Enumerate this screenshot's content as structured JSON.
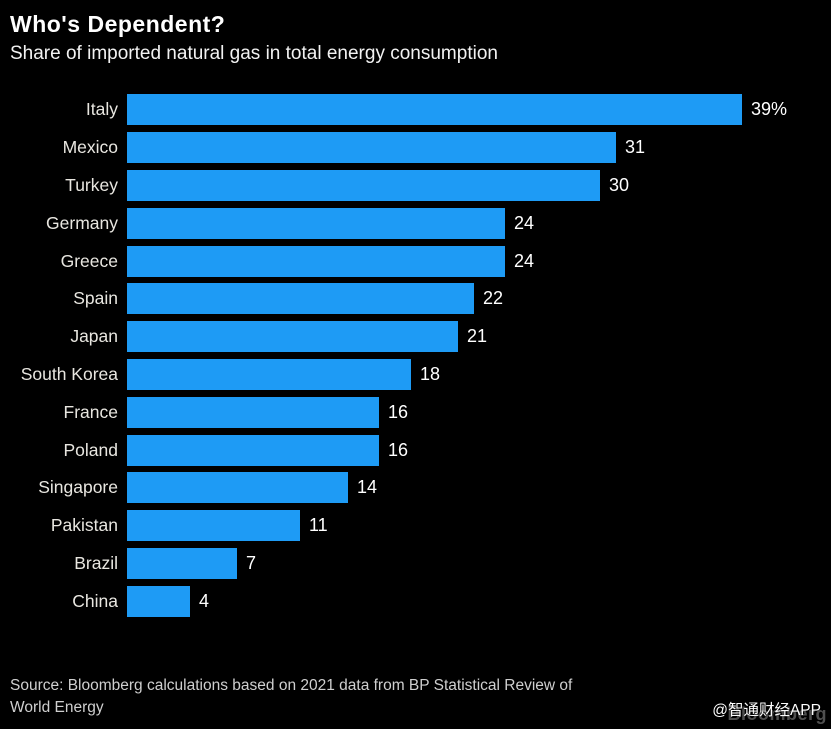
{
  "header": {
    "title": "Who's Dependent?",
    "subtitle": "Share of imported natural gas in total energy consumption"
  },
  "chart_data": {
    "type": "bar",
    "orientation": "horizontal",
    "title": "Who's Dependent?",
    "subtitle": "Share of imported natural gas in total energy consumption",
    "xlabel": "",
    "ylabel": "",
    "grid": false,
    "legend": false,
    "unit": "%",
    "xlim": [
      0,
      39
    ],
    "categories": [
      "Italy",
      "Mexico",
      "Turkey",
      "Germany",
      "Greece",
      "Spain",
      "Japan",
      "South Korea",
      "France",
      "Poland",
      "Singapore",
      "Pakistan",
      "Brazil",
      "China"
    ],
    "values": [
      39,
      31,
      30,
      24,
      24,
      22,
      21,
      18,
      16,
      16,
      14,
      11,
      7,
      4
    ],
    "value_labels": [
      "39%",
      "31",
      "30",
      "24",
      "24",
      "22",
      "21",
      "18",
      "16",
      "16",
      "14",
      "11",
      "7",
      "4"
    ],
    "bar_color": "#1e9bf5"
  },
  "source": {
    "line1": "Source: Bloomberg calculations based on 2021 data from BP Statistical Review of",
    "line2": "World Energy"
  },
  "watermark": {
    "brand": "Bloomberg",
    "overlay": "@智通财经APP"
  },
  "colors": {
    "background": "#000000",
    "bar": "#1e9bf5",
    "title_text": "#ffffff",
    "label_text": "#e8e6e0",
    "value_text": "#ffffff",
    "source_text": "#cfcfcf",
    "watermark_brand": "#4f4f4f",
    "watermark_overlay": "#fcfcfc"
  }
}
